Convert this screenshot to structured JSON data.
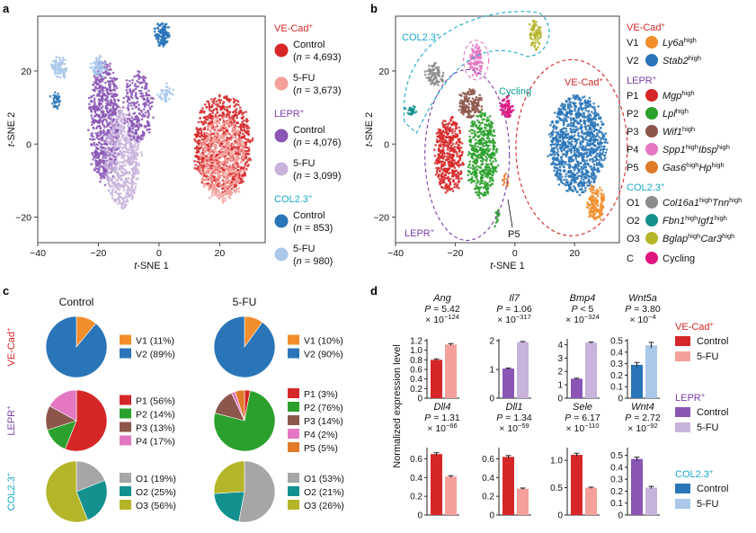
{
  "panel_labels": {
    "a": "a",
    "b": "b",
    "c": "c",
    "d": "d"
  },
  "chart_data": [
    {
      "type": "scatter",
      "panel": "a",
      "xlabel": "t-SNE 1",
      "ylabel": "t-SNE 2",
      "xticks": [
        -40,
        -20,
        0,
        20
      ],
      "yticks": [
        -20,
        0,
        20
      ],
      "xlim": [
        -40,
        35
      ],
      "ylim": [
        -27,
        35
      ],
      "legend": [
        {
          "group": "VE-Cad",
          "sup": "+",
          "color": "#d62728",
          "items": [
            {
              "label": "Control",
              "n": "(n = 4,693)",
              "color": "#d62728"
            },
            {
              "label": "5-FU",
              "n": "(n = 3,673)",
              "color": "#f4a09b"
            }
          ]
        },
        {
          "group": "LEPR",
          "sup": "+",
          "color": "#7b3fa8",
          "items": [
            {
              "label": "Control",
              "n": "(n = 4,076)",
              "color": "#8a55b5"
            },
            {
              "label": "5-FU",
              "n": "(n = 3,099)",
              "color": "#c8b3dc"
            }
          ]
        },
        {
          "group": "COL2.3",
          "sup": "+",
          "color": "#19a8c9",
          "items": [
            {
              "label": "Control",
              "n": "(n = 853)",
              "color": "#2a75b8"
            },
            {
              "label": "5-FU",
              "n": "(n = 980)",
              "color": "#a9c8ea"
            }
          ]
        }
      ],
      "clusters": [
        {
          "cx": 21,
          "cy": 0,
          "rx": 10,
          "ry": 14,
          "color": "#d62728",
          "n": 900
        },
        {
          "cx": 21,
          "cy": -4,
          "rx": 8,
          "ry": 12,
          "color": "#f4a09b",
          "n": 550
        },
        {
          "cx": -18,
          "cy": 6,
          "rx": 5,
          "ry": 18,
          "color": "#8a55b5",
          "n": 700
        },
        {
          "cx": -12,
          "cy": -4,
          "rx": 6,
          "ry": 14,
          "color": "#c8b3dc",
          "n": 600
        },
        {
          "cx": -7,
          "cy": 10,
          "rx": 5,
          "ry": 10,
          "color": "#8a55b5",
          "n": 250
        },
        {
          "cx": 1,
          "cy": 30,
          "rx": 2.5,
          "ry": 3.5,
          "color": "#2a75b8",
          "n": 130
        },
        {
          "cx": -33,
          "cy": 21,
          "rx": 2.5,
          "ry": 3,
          "color": "#a9c8ea",
          "n": 90
        },
        {
          "cx": -34,
          "cy": 12,
          "rx": 1.5,
          "ry": 2,
          "color": "#2a75b8",
          "n": 35
        },
        {
          "cx": -20,
          "cy": 21,
          "rx": 2.5,
          "ry": 3,
          "color": "#a9c8ea",
          "n": 70
        },
        {
          "cx": 2,
          "cy": 14,
          "rx": 2.5,
          "ry": 2.5,
          "color": "#a9c8ea",
          "n": 40
        }
      ]
    },
    {
      "type": "scatter",
      "panel": "b",
      "xlabel": "t-SNE 1",
      "ylabel": "t-SNE 2",
      "xticks": [
        -40,
        -20,
        0,
        20
      ],
      "yticks": [
        -20,
        0,
        20
      ],
      "xlim": [
        -40,
        35
      ],
      "ylim": [
        -27,
        35
      ],
      "region_labels": [
        {
          "text": "COL2.3",
          "sup": "+",
          "color": "#19a8c9"
        },
        {
          "text": "VE-Cad",
          "sup": "+",
          "color": "#d62728"
        },
        {
          "text": "LEPR",
          "sup": "+",
          "color": "#7b3fa8"
        },
        {
          "text": "Cycling",
          "sup": "",
          "color": "#0e9e94"
        },
        {
          "text": "P5",
          "sup": "",
          "color": "#111"
        }
      ],
      "legend": [
        {
          "group": "VE-Cad",
          "sup": "+",
          "color": "#d62728",
          "items": [
            {
              "code": "V1",
              "name": "Ly6a",
              "mark": "high",
              "color": "#f28e2b"
            },
            {
              "code": "V2",
              "name": "Stab2",
              "mark": "high",
              "color": "#2a75b8"
            }
          ]
        },
        {
          "group": "LEPR",
          "sup": "+",
          "color": "#7b3fa8",
          "items": [
            {
              "code": "P1",
              "name": "Mgp",
              "mark": "high",
              "color": "#d62728"
            },
            {
              "code": "P2",
              "name": "Lpl",
              "mark": "high",
              "color": "#2ca02c"
            },
            {
              "code": "P3",
              "name": "Wif1",
              "mark": "high",
              "color": "#8c564b"
            },
            {
              "code": "P4",
              "name": "Spp1",
              "mark": "high",
              "name2": "Ibsp",
              "mark2": "high",
              "color": "#e377c2"
            },
            {
              "code": "P5",
              "name": "Gas6",
              "mark": "high",
              "name2": "Hp",
              "mark2": "high",
              "color": "#e07b2a"
            }
          ]
        },
        {
          "group": "COL2.3",
          "sup": "+",
          "color": "#19a8c9",
          "items": [
            {
              "code": "O1",
              "name": "Col16a1",
              "mark": "high",
              "name2": "Tnn",
              "mark2": "high",
              "color": "#8c8c8c"
            },
            {
              "code": "O2",
              "name": "Fbn1",
              "mark": "high",
              "name2": "Igf1",
              "mark2": "high",
              "color": "#14918f"
            },
            {
              "code": "O3",
              "name": "Bglap",
              "mark": "high",
              "name2": "Car3",
              "mark2": "high",
              "color": "#b5b52a"
            }
          ]
        },
        {
          "group": "",
          "sup": "",
          "color": "#111",
          "items": [
            {
              "code": "C",
              "name": "Cycling",
              "mark": "",
              "color": "#e0157f",
              "plain": true
            }
          ]
        }
      ],
      "clusters": [
        {
          "cx": 21,
          "cy": 0,
          "rx": 10,
          "ry": 14,
          "color": "#2a75b8",
          "n": 1100
        },
        {
          "cx": 27,
          "cy": -16,
          "rx": 3,
          "ry": 5,
          "color": "#f28e2b",
          "n": 160
        },
        {
          "cx": -22,
          "cy": -3,
          "rx": 5,
          "ry": 11,
          "color": "#d62728",
          "n": 450
        },
        {
          "cx": -11,
          "cy": -3,
          "rx": 5,
          "ry": 12,
          "color": "#2ca02c",
          "n": 500
        },
        {
          "cx": -15,
          "cy": 11,
          "rx": 4,
          "ry": 4,
          "color": "#8c564b",
          "n": 160
        },
        {
          "cx": -13,
          "cy": 23,
          "rx": 2.5,
          "ry": 4,
          "color": "#e377c2",
          "n": 110
        },
        {
          "cx": -3,
          "cy": 10,
          "rx": 2,
          "ry": 3,
          "color": "#e0157f",
          "n": 80
        },
        {
          "cx": -27,
          "cy": 19,
          "rx": 3,
          "ry": 3,
          "color": "#8c8c8c",
          "n": 90
        },
        {
          "cx": -35,
          "cy": 9,
          "rx": 1.5,
          "ry": 1.5,
          "color": "#14918f",
          "n": 30
        },
        {
          "cx": 7,
          "cy": 30,
          "rx": 2,
          "ry": 4,
          "color": "#b5b52a",
          "n": 80
        },
        {
          "cx": -3,
          "cy": -10,
          "rx": 1,
          "ry": 2,
          "color": "#e07b2a",
          "n": 15
        },
        {
          "cx": -6,
          "cy": -20,
          "rx": 1,
          "ry": 2,
          "color": "#2ca02c",
          "n": 15
        }
      ]
    },
    {
      "type": "pie",
      "panel": "c",
      "column_titles": [
        "Control",
        "5-FU"
      ],
      "row_labels": [
        {
          "text": "VE-Cad",
          "sup": "+",
          "color": "#d62728"
        },
        {
          "text": "LEPR",
          "sup": "+",
          "color": "#7b3fa8"
        },
        {
          "text": "COL2.3",
          "sup": "+",
          "color": "#19a8c9"
        }
      ],
      "rows": [
        [
          {
            "slices": [
              {
                "label": "V1 (11%)",
                "value": 11,
                "color": "#f28e2b"
              },
              {
                "label": "V2 (89%)",
                "value": 89,
                "color": "#2a75b8"
              }
            ]
          },
          {
            "slices": [
              {
                "label": "V1 (10%)",
                "value": 10,
                "color": "#f28e2b"
              },
              {
                "label": "V2 (90%)",
                "value": 90,
                "color": "#2a75b8"
              }
            ]
          }
        ],
        [
          {
            "slices": [
              {
                "label": "P1 (56%)",
                "value": 56,
                "color": "#d62728"
              },
              {
                "label": "P2 (14%)",
                "value": 14,
                "color": "#2ca02c"
              },
              {
                "label": "P3 (13%)",
                "value": 13,
                "color": "#8c564b"
              },
              {
                "label": "P4 (17%)",
                "value": 17,
                "color": "#e377c2"
              }
            ]
          },
          {
            "slices": [
              {
                "label": "P1 (3%)",
                "value": 3,
                "color": "#d62728"
              },
              {
                "label": "P2 (76%)",
                "value": 76,
                "color": "#2ca02c"
              },
              {
                "label": "P3 (14%)",
                "value": 14,
                "color": "#8c564b"
              },
              {
                "label": "P4 (2%)",
                "value": 2,
                "color": "#e377c2"
              },
              {
                "label": "P5 (5%)",
                "value": 5,
                "color": "#e07b2a"
              }
            ]
          }
        ],
        [
          {
            "slices": [
              {
                "label": "O1 (19%)",
                "value": 19,
                "color": "#a6a6a6"
              },
              {
                "label": "O2 (25%)",
                "value": 25,
                "color": "#14918f"
              },
              {
                "label": "O3 (56%)",
                "value": 56,
                "color": "#b5b52a"
              }
            ]
          },
          {
            "slices": [
              {
                "label": "O1 (53%)",
                "value": 53,
                "color": "#a6a6a6"
              },
              {
                "label": "O2 (21%)",
                "value": 21,
                "color": "#14918f"
              },
              {
                "label": "O3 (26%)",
                "value": 26,
                "color": "#b5b52a"
              }
            ]
          }
        ]
      ]
    },
    {
      "type": "bar",
      "panel": "d",
      "ylabel": "Normalized expression level",
      "legend": [
        {
          "group": "VE-Cad",
          "sup": "+",
          "color": "#d62728",
          "items": [
            {
              "label": "Control",
              "color": "#d62728"
            },
            {
              "label": "5-FU",
              "color": "#f4a09b"
            }
          ]
        },
        {
          "group": "LEPR",
          "sup": "+",
          "color": "#7b3fa8",
          "items": [
            {
              "label": "Control",
              "color": "#8a55b5"
            },
            {
              "label": "5-FU",
              "color": "#c8b3dc"
            }
          ]
        },
        {
          "group": "COL2.3",
          "sup": "+",
          "color": "#19a8c9",
          "items": [
            {
              "label": "Control",
              "color": "#2a75b8"
            },
            {
              "label": "5-FU",
              "color": "#a9c8ea"
            }
          ]
        }
      ],
      "genes": [
        {
          "gene": "Ang",
          "p_line1": "P = 5.42",
          "p_line2": "× 10",
          "p_exp": "−124",
          "ylim": [
            0,
            1.2
          ],
          "yticks": [
            0,
            0.2,
            0.4,
            0.6,
            0.8,
            1.0,
            1.2
          ],
          "yticklabels": [
            "0",
            "0.2",
            "0.4",
            "0.6",
            "0.8",
            "1.0",
            "1.2"
          ],
          "values": [
            0.8,
            1.12
          ],
          "errors": [
            0.02,
            0.02
          ],
          "colors": [
            "#d62728",
            "#f4a09b"
          ]
        },
        {
          "gene": "Il7",
          "p_line1": "P = 1.06",
          "p_line2": "× 10",
          "p_exp": "−317",
          "ylim": [
            0,
            2
          ],
          "yticks": [
            0,
            1,
            2
          ],
          "yticklabels": [
            "0",
            "1",
            "2"
          ],
          "values": [
            1.03,
            1.95
          ],
          "errors": [
            0.02,
            0.02
          ],
          "colors": [
            "#8a55b5",
            "#c8b3dc"
          ]
        },
        {
          "gene": "Bmp4",
          "p_line1": "P < 5",
          "p_line2": "× 10",
          "p_exp": "−324",
          "ylim": [
            0,
            4.3
          ],
          "yticks": [
            0,
            1,
            2,
            3,
            4
          ],
          "yticklabels": [
            "0",
            "1",
            "2",
            "3",
            "4"
          ],
          "values": [
            1.45,
            4.15
          ],
          "errors": [
            0.04,
            0.04
          ],
          "colors": [
            "#8a55b5",
            "#c8b3dc"
          ]
        },
        {
          "gene": "Wnt5a",
          "p_line1": "P = 3.80",
          "p_line2": "× 10",
          "p_exp": "−4",
          "ylim": [
            0,
            0.5
          ],
          "yticks": [
            0,
            0.1,
            0.2,
            0.3,
            0.4,
            0.5
          ],
          "yticklabels": [
            "0",
            "0.1",
            "0.2",
            "0.3",
            "0.4",
            "0.5"
          ],
          "values": [
            0.29,
            0.46
          ],
          "errors": [
            0.02,
            0.025
          ],
          "colors": [
            "#2a75b8",
            "#a9c8ea"
          ]
        },
        {
          "gene": "Dll4",
          "p_line1": "P = 1.31",
          "p_line2": "× 10",
          "p_exp": "−66",
          "ylim": [
            0,
            0.7
          ],
          "yticks": [
            0,
            0.2,
            0.4,
            0.6
          ],
          "yticklabels": [
            "0",
            "0.2",
            "0.4",
            "0.6"
          ],
          "values": [
            0.65,
            0.41
          ],
          "errors": [
            0.015,
            0.01
          ],
          "colors": [
            "#d62728",
            "#f4a09b"
          ]
        },
        {
          "gene": "Dll1",
          "p_line1": "P = 1.34",
          "p_line2": "× 10",
          "p_exp": "−59",
          "ylim": [
            0,
            0.7
          ],
          "yticks": [
            0,
            0.2,
            0.4,
            0.6
          ],
          "yticklabels": [
            "0",
            "0.2",
            "0.4",
            "0.6"
          ],
          "values": [
            0.62,
            0.28
          ],
          "errors": [
            0.015,
            0.008
          ],
          "colors": [
            "#d62728",
            "#f4a09b"
          ]
        },
        {
          "gene": "Sele",
          "p_line1": "P = 6.17",
          "p_line2": "× 10",
          "p_exp": "−110",
          "ylim": [
            0,
            1.2
          ],
          "yticks": [
            0,
            0.5,
            1.0
          ],
          "yticklabels": [
            "0",
            "0.5",
            "1.0"
          ],
          "values": [
            1.1,
            0.5
          ],
          "errors": [
            0.03,
            0.01
          ],
          "colors": [
            "#d62728",
            "#f4a09b"
          ]
        },
        {
          "gene": "Wnt4",
          "p_line1": "P = 2.72",
          "p_line2": "× 10",
          "p_exp": "−92",
          "ylim": [
            0,
            0.55
          ],
          "yticks": [
            0,
            0.1,
            0.2,
            0.3,
            0.4,
            0.5
          ],
          "yticklabels": [
            "0",
            "0.1",
            "0.2",
            "0.3",
            "0.4",
            "0.5"
          ],
          "values": [
            0.47,
            0.23
          ],
          "errors": [
            0.015,
            0.01
          ],
          "colors": [
            "#8a55b5",
            "#c8b3dc"
          ]
        }
      ]
    }
  ]
}
